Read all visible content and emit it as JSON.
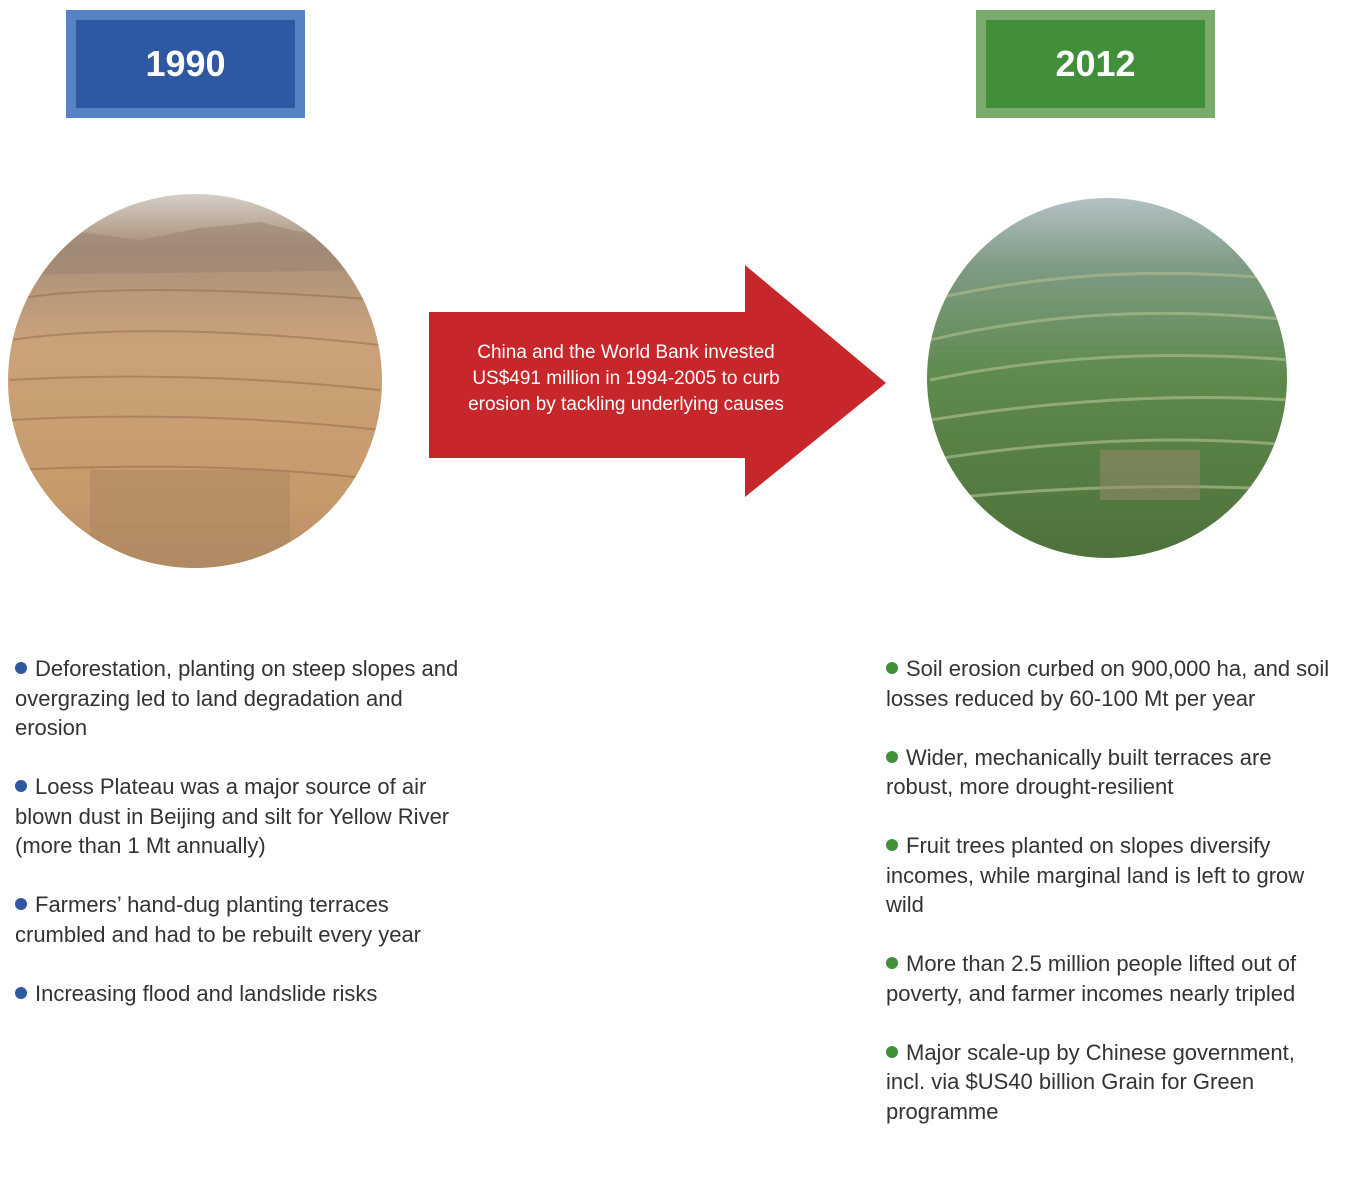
{
  "before": {
    "year": "1990",
    "points": [
      "Deforestation, planting on steep slopes and overgrazing led to land degradation and erosion",
      "Loess Plateau was a major source of air blown dust in Beijing and silt for Yellow River (more than 1 Mt annually)",
      "Farmers’ hand-dug planting terraces crumbled and had to be rebuilt every year",
      "Increasing flood and landslide risks"
    ]
  },
  "intervention": {
    "text": "China and the World Bank invested US$491 million in 1994-2005 to curb erosion by tackling underlying causes"
  },
  "after": {
    "year": "2012",
    "points": [
      "Soil erosion curbed on 900,000 ha, and soil losses reduced by 60-100 Mt per year",
      "Wider, mechanically built terraces are robust, more drought-resilient",
      "Fruit trees planted on slopes diversify incomes, while marginal land is left to grow wild",
      "More than 2.5 million people lifted out of poverty, and farmer incomes nearly tripled",
      "Major scale-up by Chinese government, incl. via $US40 billion Grain for Green programme"
    ]
  }
}
